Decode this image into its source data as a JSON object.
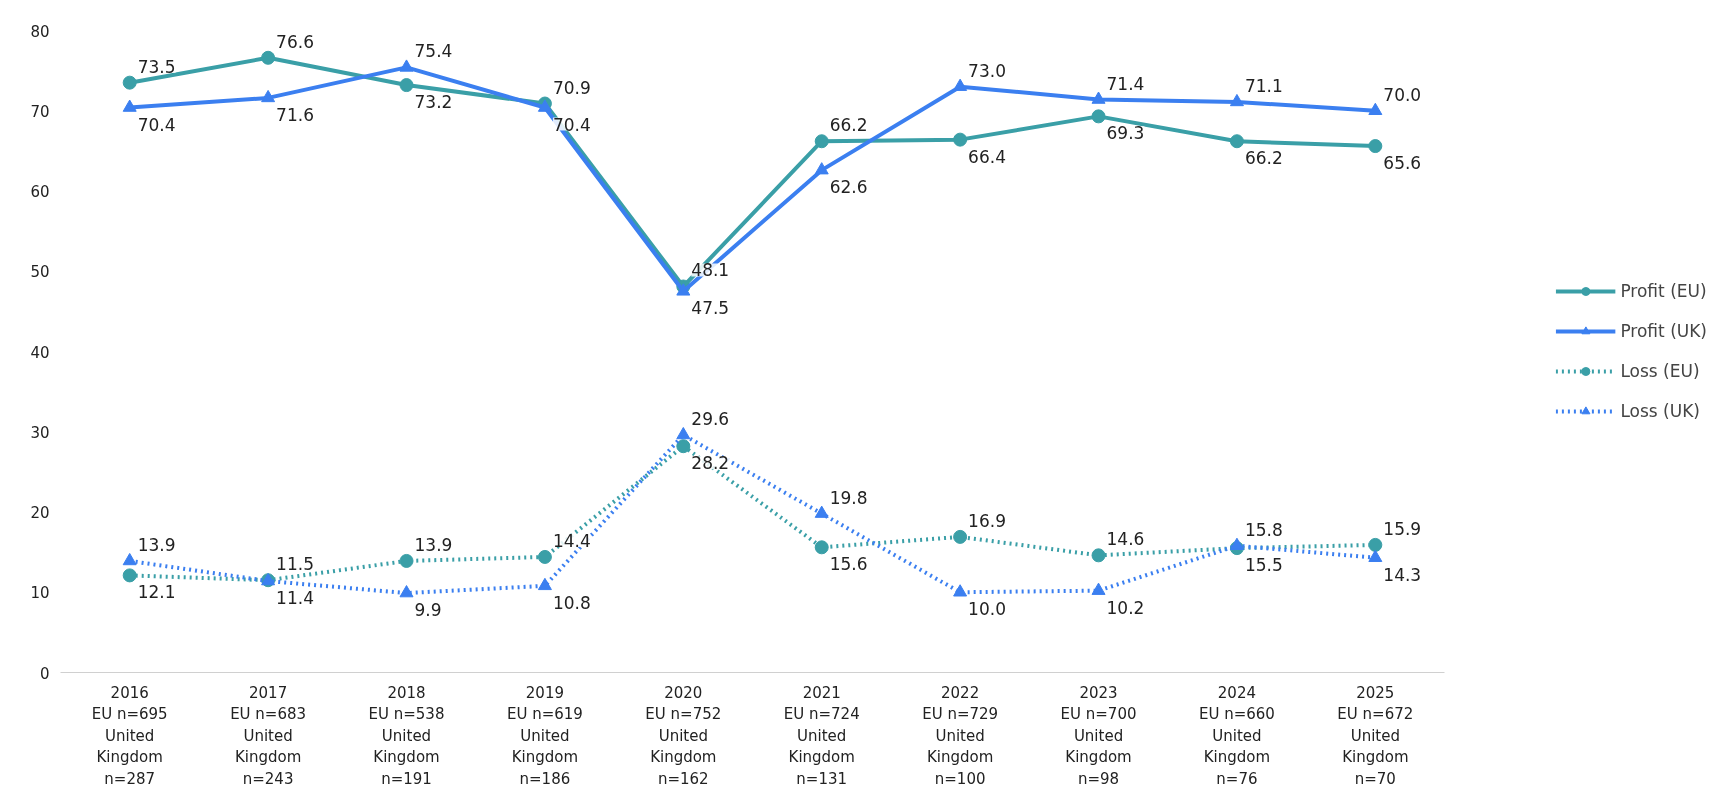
{
  "chart_data": {
    "type": "line",
    "categories": [
      "2016\nEU n=695\nUnited\nKingdom\nn=287",
      "2017\nEU n=683\nUnited\nKingdom\nn=243",
      "2018\nEU n=538\nUnited\nKingdom\nn=191",
      "2019\nEU n=619\nUnited\nKingdom\nn=186",
      "2020\nEU n=752\nUnited\nKingdom\nn=162",
      "2021\nEU n=724\nUnited\nKingdom\nn=131",
      "2022\nEU n=729\nUnited\nKingdom\nn=100",
      "2023\nEU n=700\nUnited\nKingdom\nn=98",
      "2024\nEU n=660\nUnited\nKingdom\nn=76",
      "2025\nEU n=672\nUnited\nKingdom\nn=70"
    ],
    "series": [
      {
        "name": "Profit (EU)",
        "color": "#3a9fa7",
        "marker": "circle",
        "line_style": "solid",
        "values": [
          73.5,
          76.6,
          73.2,
          70.9,
          48.1,
          66.2,
          66.4,
          69.3,
          66.2,
          65.6
        ],
        "value_labels": [
          "73.5",
          "76.6",
          "73.2",
          "70.9",
          "48.1",
          "66.2",
          "66.4",
          "69.3",
          "66.2",
          "65.6"
        ]
      },
      {
        "name": "Profit (UK)",
        "color": "#3b7ff0",
        "marker": "triangle",
        "line_style": "solid",
        "values": [
          70.4,
          71.6,
          75.4,
          70.4,
          47.5,
          62.6,
          73.0,
          71.4,
          71.1,
          70.0
        ],
        "value_labels": [
          "70.4",
          "71.6",
          "75.4",
          "70.4",
          "47.5",
          "62.6",
          "73.0",
          "71.4",
          "71.1",
          "70.0"
        ]
      },
      {
        "name": "Loss (EU)",
        "color": "#3a9fa7",
        "marker": "circle",
        "line_style": "dotted",
        "values": [
          12.1,
          11.5,
          13.9,
          14.4,
          28.2,
          15.6,
          16.9,
          14.6,
          15.5,
          15.9
        ],
        "value_labels": [
          "12.1",
          "11.5",
          "13.9",
          "14.4",
          "28.2",
          "15.6",
          "16.9",
          "14.6",
          "15.5",
          "15.9"
        ]
      },
      {
        "name": "Loss (UK)",
        "color": "#3b7ff0",
        "marker": "triangle",
        "line_style": "dotted",
        "values": [
          13.9,
          11.4,
          9.9,
          10.8,
          29.6,
          19.8,
          10.0,
          10.2,
          15.8,
          14.3
        ],
        "value_labels": [
          "13.9",
          "11.4",
          "9.9",
          "10.8",
          "29.6",
          "19.8",
          "10.0",
          "10.2",
          "15.8",
          "14.3"
        ]
      }
    ],
    "ylim": [
      0,
      80
    ],
    "yticks": [
      0,
      10,
      20,
      30,
      40,
      50,
      60,
      70,
      80
    ],
    "grid": false,
    "legend": "right"
  }
}
